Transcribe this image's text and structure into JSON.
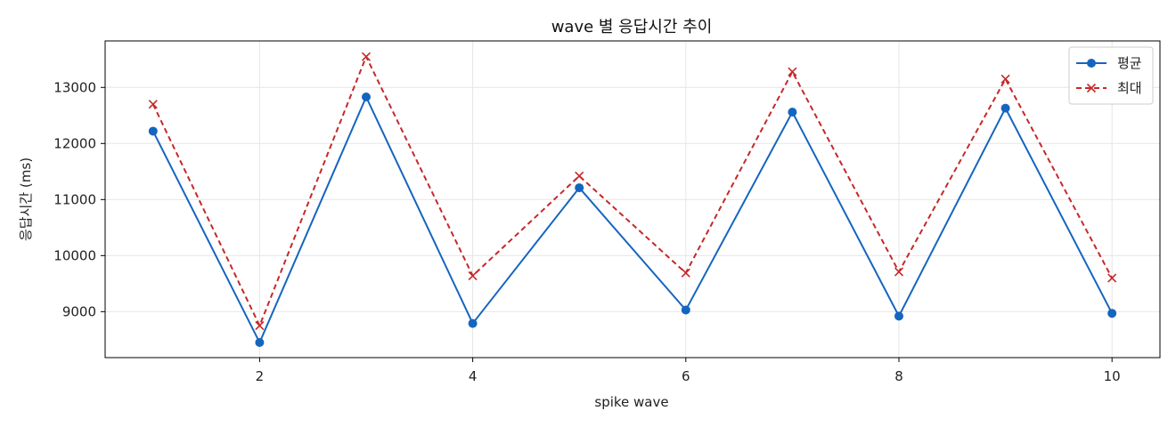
{
  "chart_data": {
    "type": "line",
    "title": "wave 별 응답시간 추이",
    "xlabel": "spike wave",
    "ylabel": "응답시간 (ms)",
    "x": [
      1,
      2,
      3,
      4,
      5,
      6,
      7,
      8,
      9,
      10
    ],
    "xlim": [
      0.55,
      10.45
    ],
    "ylim": [
      8180,
      13830
    ],
    "xticks": [
      2,
      4,
      6,
      8,
      10
    ],
    "yticks": [
      9000,
      10000,
      11000,
      12000,
      13000
    ],
    "grid": true,
    "legend_position": "top-right",
    "series": [
      {
        "name": "평균",
        "values": [
          12220,
          8450,
          12830,
          8790,
          11210,
          9030,
          12560,
          8920,
          12630,
          8970
        ],
        "color": "#1565c0",
        "marker": "circle",
        "linestyle": "solid"
      },
      {
        "name": "최대",
        "values": [
          12700,
          8750,
          13550,
          9640,
          11420,
          9690,
          13280,
          9710,
          13150,
          9600
        ],
        "color": "#c62828",
        "marker": "x",
        "linestyle": "dashed"
      }
    ]
  }
}
